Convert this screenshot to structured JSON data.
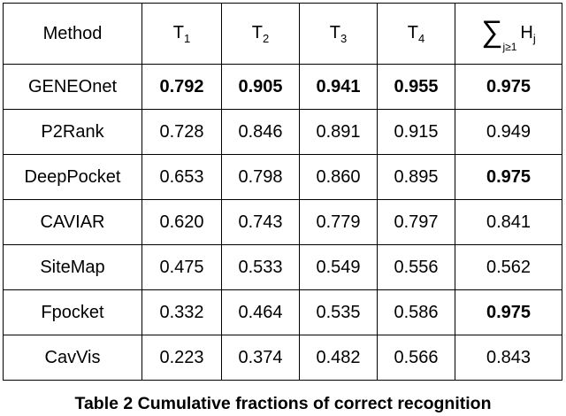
{
  "table": {
    "header": [
      {
        "text": "Method"
      },
      {
        "text": "T",
        "sub": "1"
      },
      {
        "text": "T",
        "sub": "2"
      },
      {
        "text": "T",
        "sub": "3"
      },
      {
        "text": "T",
        "sub": "4"
      },
      {
        "symbol": "∑",
        "symbol_sub": "j≥1",
        "text": "H",
        "sub": "j"
      }
    ],
    "rows": [
      {
        "method": "GENEOnet",
        "cells": [
          {
            "text": "0.792",
            "bold": true
          },
          {
            "text": "0.905",
            "bold": true
          },
          {
            "text": "0.941",
            "bold": true
          },
          {
            "text": "0.955",
            "bold": true
          },
          {
            "text": "0.975",
            "bold": true
          }
        ]
      },
      {
        "method": "P2Rank",
        "cells": [
          {
            "text": "0.728",
            "bold": false
          },
          {
            "text": "0.846",
            "bold": false
          },
          {
            "text": "0.891",
            "bold": false
          },
          {
            "text": "0.915",
            "bold": false
          },
          {
            "text": "0.949",
            "bold": false
          }
        ]
      },
      {
        "method": "DeepPocket",
        "cells": [
          {
            "text": "0.653",
            "bold": false
          },
          {
            "text": "0.798",
            "bold": false
          },
          {
            "text": "0.860",
            "bold": false
          },
          {
            "text": "0.895",
            "bold": false
          },
          {
            "text": "0.975",
            "bold": true
          }
        ]
      },
      {
        "method": "CAVIAR",
        "cells": [
          {
            "text": "0.620",
            "bold": false
          },
          {
            "text": "0.743",
            "bold": false
          },
          {
            "text": "0.779",
            "bold": false
          },
          {
            "text": "0.797",
            "bold": false
          },
          {
            "text": "0.841",
            "bold": false
          }
        ]
      },
      {
        "method": "SiteMap",
        "cells": [
          {
            "text": "0.475",
            "bold": false
          },
          {
            "text": "0.533",
            "bold": false
          },
          {
            "text": "0.549",
            "bold": false
          },
          {
            "text": "0.556",
            "bold": false
          },
          {
            "text": "0.562",
            "bold": false
          }
        ]
      },
      {
        "method": "Fpocket",
        "cells": [
          {
            "text": "0.332",
            "bold": false
          },
          {
            "text": "0.464",
            "bold": false
          },
          {
            "text": "0.535",
            "bold": false
          },
          {
            "text": "0.586",
            "bold": false
          },
          {
            "text": "0.975",
            "bold": true
          }
        ]
      },
      {
        "method": "CavVis",
        "cells": [
          {
            "text": "0.223",
            "bold": false
          },
          {
            "text": "0.374",
            "bold": false
          },
          {
            "text": "0.482",
            "bold": false
          },
          {
            "text": "0.566",
            "bold": false
          },
          {
            "text": "0.843",
            "bold": false
          }
        ]
      }
    ],
    "caption": "Table 2 Cumulative fractions of correct recognition"
  }
}
